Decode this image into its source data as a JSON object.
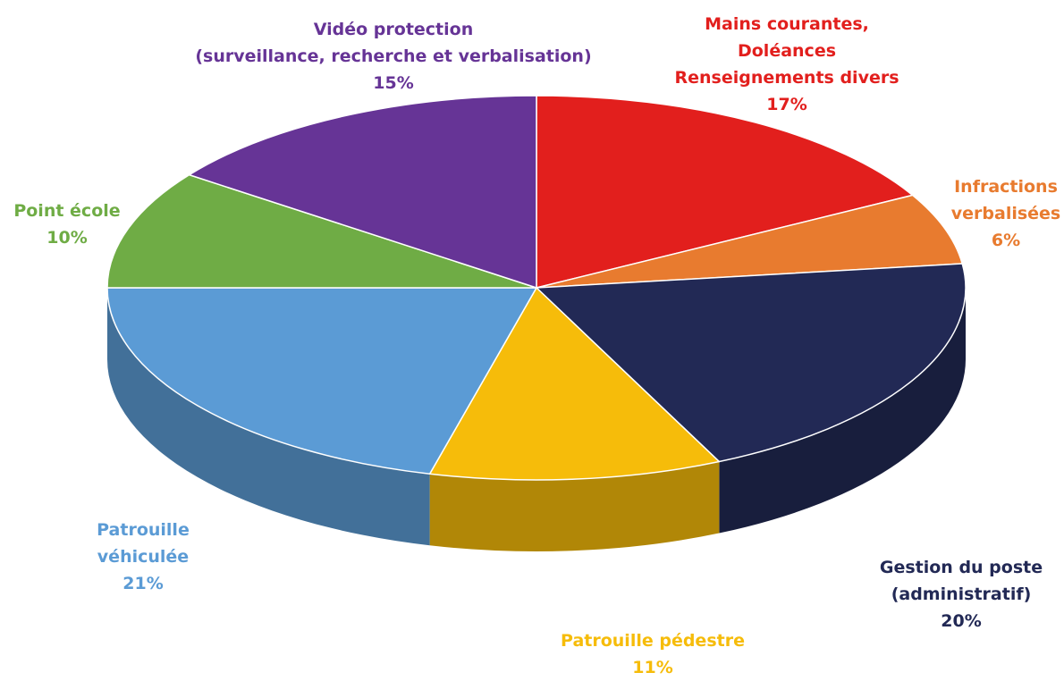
{
  "chart_data": {
    "type": "pie",
    "title": "",
    "slices": [
      {
        "lines": [
          "Mains courantes,",
          "Doléances",
          "Renseignements divers"
        ],
        "pct": "17%",
        "value": 17,
        "color": "#e21f1d"
      },
      {
        "lines": [
          "Infractions",
          "verbalisées"
        ],
        "pct": "6%",
        "value": 6,
        "color": "#e87b2f"
      },
      {
        "lines": [
          "Gestion du poste",
          "(administratif)"
        ],
        "pct": "20%",
        "value": 20,
        "color": "#222955"
      },
      {
        "lines": [
          "Patrouille pédestre"
        ],
        "pct": "11%",
        "value": 11,
        "color": "#f6bc0a"
      },
      {
        "lines": [
          "Patrouille",
          "véhiculée"
        ],
        "pct": "21%",
        "value": 21,
        "color": "#5b9bd5"
      },
      {
        "lines": [
          "Point école"
        ],
        "pct": "10%",
        "value": 10,
        "color": "#6fac45"
      },
      {
        "lines": [
          "Vidéo protection",
          "(surveillance, recherche et verbalisation)"
        ],
        "pct": "15%",
        "value": 15,
        "color": "#663496"
      }
    ],
    "label_colors": [
      "#e21f1d",
      "#e87b2f",
      "#222955",
      "#f6bc0a",
      "#5b9bd5",
      "#6fac45",
      "#663496"
    ]
  }
}
